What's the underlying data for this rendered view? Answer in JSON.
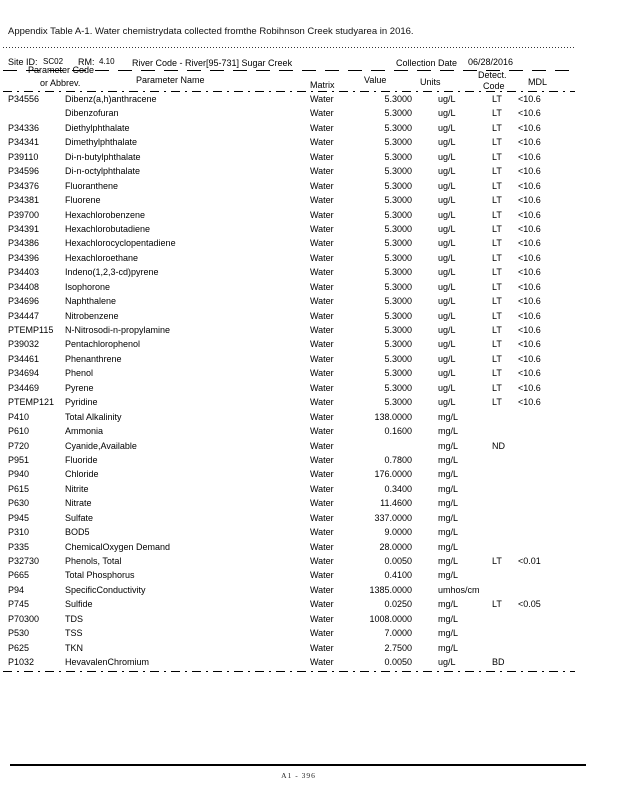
{
  "document": {
    "title": "Appendix Table A-1. Water chemistrydata collected fromthe Robihnson Creek studyarea in 2016.",
    "site_info": {
      "site_id_label": "Site ID:",
      "site_id": "SC02",
      "rm_label": "RM:",
      "rm": "4.10",
      "river_code": "River Code - River[95-731] Sugar Creek",
      "collection_date_label": "Collection Date",
      "collection_date": "06/28/2016"
    },
    "columns": {
      "code_line1": "Parameter Code",
      "code_line2": "or Abbrev.",
      "name": "Parameter Name",
      "matrix": "Matrix",
      "value": "Value",
      "units": "Units",
      "detect_line1": "Detect.",
      "detect_line2": "Code",
      "mdl": "MDL"
    },
    "rows": [
      {
        "code": "P34556",
        "name": "Dibenz(a,h)anthracene",
        "matrix": "Water",
        "value": "5.3000",
        "units": "ug/L",
        "detect": "LT",
        "mdl": "<10.6"
      },
      {
        "code": "",
        "name": "Dibenzofuran",
        "matrix": "Water",
        "value": "5.3000",
        "units": "ug/L",
        "detect": "LT",
        "mdl": "<10.6"
      },
      {
        "code": "P34336",
        "name": "Diethylphthalate",
        "matrix": "Water",
        "value": "5.3000",
        "units": "ug/L",
        "detect": "LT",
        "mdl": "<10.6"
      },
      {
        "code": "P34341",
        "name": "Dimethylphthalate",
        "matrix": "Water",
        "value": "5.3000",
        "units": "ug/L",
        "detect": "LT",
        "mdl": "<10.6"
      },
      {
        "code": "P39110",
        "name": "Di-n-butylphthalate",
        "matrix": "Water",
        "value": "5.3000",
        "units": "ug/L",
        "detect": "LT",
        "mdl": "<10.6"
      },
      {
        "code": "P34596",
        "name": "Di-n-octylphthalate",
        "matrix": "Water",
        "value": "5.3000",
        "units": "ug/L",
        "detect": "LT",
        "mdl": "<10.6"
      },
      {
        "code": "P34376",
        "name": "Fluoranthene",
        "matrix": "Water",
        "value": "5.3000",
        "units": "ug/L",
        "detect": "LT",
        "mdl": "<10.6"
      },
      {
        "code": "P34381",
        "name": "Fluorene",
        "matrix": "Water",
        "value": "5.3000",
        "units": "ug/L",
        "detect": "LT",
        "mdl": "<10.6"
      },
      {
        "code": "P39700",
        "name": "Hexachlorobenzene",
        "matrix": "Water",
        "value": "5.3000",
        "units": "ug/L",
        "detect": "LT",
        "mdl": "<10.6"
      },
      {
        "code": "P34391",
        "name": "Hexachlorobutadiene",
        "matrix": "Water",
        "value": "5.3000",
        "units": "ug/L",
        "detect": "LT",
        "mdl": "<10.6"
      },
      {
        "code": "P34386",
        "name": "Hexachlorocyclopentadiene",
        "matrix": "Water",
        "value": "5.3000",
        "units": "ug/L",
        "detect": "LT",
        "mdl": "<10.6"
      },
      {
        "code": "P34396",
        "name": "Hexachloroethane",
        "matrix": "Water",
        "value": "5.3000",
        "units": "ug/L",
        "detect": "LT",
        "mdl": "<10.6"
      },
      {
        "code": "P34403",
        "name": "Indeno(1,2,3-cd)pyrene",
        "matrix": "Water",
        "value": "5.3000",
        "units": "ug/L",
        "detect": "LT",
        "mdl": "<10.6"
      },
      {
        "code": "P34408",
        "name": "Isophorone",
        "matrix": "Water",
        "value": "5.3000",
        "units": "ug/L",
        "detect": "LT",
        "mdl": "<10.6"
      },
      {
        "code": "P34696",
        "name": "Naphthalene",
        "matrix": "Water",
        "value": "5.3000",
        "units": "ug/L",
        "detect": "LT",
        "mdl": "<10.6"
      },
      {
        "code": "P34447",
        "name": "Nitrobenzene",
        "matrix": "Water",
        "value": "5.3000",
        "units": "ug/L",
        "detect": "LT",
        "mdl": "<10.6"
      },
      {
        "code": "PTEMP115",
        "name": "N-Nitrosodi-n-propylamine",
        "matrix": "Water",
        "value": "5.3000",
        "units": "ug/L",
        "detect": "LT",
        "mdl": "<10.6"
      },
      {
        "code": "P39032",
        "name": "Pentachlorophenol",
        "matrix": "Water",
        "value": "5.3000",
        "units": "ug/L",
        "detect": "LT",
        "mdl": "<10.6"
      },
      {
        "code": "P34461",
        "name": "Phenanthrene",
        "matrix": "Water",
        "value": "5.3000",
        "units": "ug/L",
        "detect": "LT",
        "mdl": "<10.6"
      },
      {
        "code": "P34694",
        "name": "Phenol",
        "matrix": "Water",
        "value": "5.3000",
        "units": "ug/L",
        "detect": "LT",
        "mdl": "<10.6"
      },
      {
        "code": "P34469",
        "name": "Pyrene",
        "matrix": "Water",
        "value": "5.3000",
        "units": "ug/L",
        "detect": "LT",
        "mdl": "<10.6"
      },
      {
        "code": "PTEMP121",
        "name": "Pyridine",
        "matrix": "Water",
        "value": "5.3000",
        "units": "ug/L",
        "detect": "LT",
        "mdl": "<10.6"
      },
      {
        "code": "P410",
        "name": "Total Alkalinity",
        "matrix": "Water",
        "value": "138.0000",
        "units": "mg/L",
        "detect": "",
        "mdl": ""
      },
      {
        "code": "P610",
        "name": "Ammonia",
        "matrix": "Water",
        "value": "0.1600",
        "units": "mg/L",
        "detect": "",
        "mdl": ""
      },
      {
        "code": "P720",
        "name": "Cyanide,Available",
        "matrix": "Water",
        "value": "",
        "units": "mg/L",
        "detect": "ND",
        "mdl": ""
      },
      {
        "code": "P951",
        "name": "Fluoride",
        "matrix": "Water",
        "value": "0.7800",
        "units": "mg/L",
        "detect": "",
        "mdl": ""
      },
      {
        "code": "P940",
        "name": "Chloride",
        "matrix": "Water",
        "value": "176.0000",
        "units": "mg/L",
        "detect": "",
        "mdl": ""
      },
      {
        "code": "P615",
        "name": "Nitrite",
        "matrix": "Water",
        "value": "0.3400",
        "units": "mg/L",
        "detect": "",
        "mdl": ""
      },
      {
        "code": "P630",
        "name": "Nitrate",
        "matrix": "Water",
        "value": "11.4600",
        "units": "mg/L",
        "detect": "",
        "mdl": ""
      },
      {
        "code": "P945",
        "name": "Sulfate",
        "matrix": "Water",
        "value": "337.0000",
        "units": "mg/L",
        "detect": "",
        "mdl": ""
      },
      {
        "code": "P310",
        "name": "BOD5",
        "matrix": "Water",
        "value": "9.0000",
        "units": "mg/L",
        "detect": "",
        "mdl": ""
      },
      {
        "code": "P335",
        "name": "ChemicalOxygen Demand",
        "matrix": "Water",
        "value": "28.0000",
        "units": "mg/L",
        "detect": "",
        "mdl": ""
      },
      {
        "code": "P32730",
        "name": "Phenols, Total",
        "matrix": "Water",
        "value": "0.0050",
        "units": "mg/L",
        "detect": "LT",
        "mdl": "<0.01"
      },
      {
        "code": "P665",
        "name": "Total Phosphorus",
        "matrix": "Water",
        "value": "0.4100",
        "units": "mg/L",
        "detect": "",
        "mdl": ""
      },
      {
        "code": "P94",
        "name": "SpecificConductivity",
        "matrix": "Water",
        "value": "1385.0000",
        "units": "umhos/cm",
        "detect": "",
        "mdl": ""
      },
      {
        "code": "P745",
        "name": "Sulfide",
        "matrix": "Water",
        "value": "0.0250",
        "units": "mg/L",
        "detect": "LT",
        "mdl": "<0.05"
      },
      {
        "code": "P70300",
        "name": "TDS",
        "matrix": "Water",
        "value": "1008.0000",
        "units": "mg/L",
        "detect": "",
        "mdl": ""
      },
      {
        "code": "P530",
        "name": "TSS",
        "matrix": "Water",
        "value": "7.0000",
        "units": "mg/L",
        "detect": "",
        "mdl": ""
      },
      {
        "code": "P625",
        "name": "TKN",
        "matrix": "Water",
        "value": "2.7500",
        "units": "mg/L",
        "detect": "",
        "mdl": ""
      },
      {
        "code": "P1032",
        "name": "HevavalenChromium",
        "matrix": "Water",
        "value": "0.0050",
        "units": "ug/L",
        "detect": "BD",
        "mdl": ""
      }
    ],
    "footer": "A1 - 396"
  }
}
